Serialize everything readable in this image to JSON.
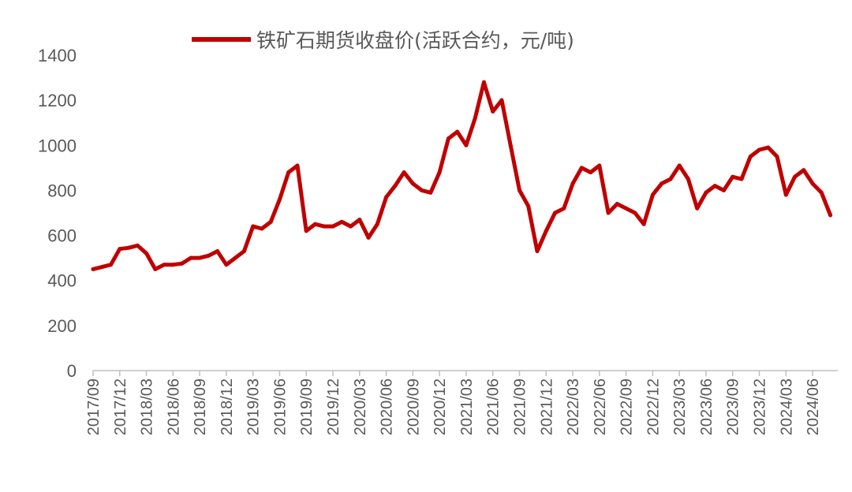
{
  "chart_data": {
    "type": "line",
    "title": "",
    "xlabel": "",
    "ylabel": "",
    "ylim": [
      0,
      1400
    ],
    "yticks": [
      0,
      200,
      400,
      600,
      800,
      1000,
      1200,
      1400
    ],
    "grid": false,
    "legend_position": "top",
    "line_color": "#C00000",
    "xtick_labels": [
      "2017/09",
      "2017/12",
      "2018/03",
      "2018/06",
      "2018/09",
      "2018/12",
      "2019/03",
      "2019/06",
      "2019/09",
      "2019/12",
      "2020/03",
      "2020/06",
      "2020/09",
      "2020/12",
      "2021/03",
      "2021/06",
      "2021/09",
      "2021/12",
      "2022/03",
      "2022/06",
      "2022/09",
      "2022/12",
      "2023/03",
      "2023/06",
      "2023/09",
      "2023/12",
      "2024/03",
      "2024/06"
    ],
    "series": [
      {
        "name": "铁矿石期货收盘价(活跃合约，元/吨)",
        "x": [
          "2017/09",
          "2017/10",
          "2017/11",
          "2017/12",
          "2018/01",
          "2018/02",
          "2018/03",
          "2018/04",
          "2018/05",
          "2018/06",
          "2018/07",
          "2018/08",
          "2018/09",
          "2018/10",
          "2018/11",
          "2018/12",
          "2019/01",
          "2019/02",
          "2019/03",
          "2019/04",
          "2019/05",
          "2019/06",
          "2019/07",
          "2019/08",
          "2019/09",
          "2019/10",
          "2019/11",
          "2019/12",
          "2020/01",
          "2020/02",
          "2020/03",
          "2020/04",
          "2020/05",
          "2020/06",
          "2020/07",
          "2020/08",
          "2020/09",
          "2020/10",
          "2020/11",
          "2020/12",
          "2021/01",
          "2021/02",
          "2021/03",
          "2021/04",
          "2021/05",
          "2021/06",
          "2021/07",
          "2021/08",
          "2021/09",
          "2021/10",
          "2021/11",
          "2021/12",
          "2022/01",
          "2022/02",
          "2022/03",
          "2022/04",
          "2022/05",
          "2022/06",
          "2022/07",
          "2022/08",
          "2022/09",
          "2022/10",
          "2022/11",
          "2022/12",
          "2023/01",
          "2023/02",
          "2023/03",
          "2023/04",
          "2023/05",
          "2023/06",
          "2023/07",
          "2023/08",
          "2023/09",
          "2023/10",
          "2023/11",
          "2023/12",
          "2024/01",
          "2024/02",
          "2024/03",
          "2024/04",
          "2024/05",
          "2024/06",
          "2024/07",
          "2024/08"
        ],
        "values": [
          450,
          460,
          470,
          540,
          545,
          555,
          520,
          450,
          470,
          470,
          475,
          500,
          500,
          510,
          530,
          470,
          500,
          530,
          640,
          630,
          660,
          760,
          880,
          910,
          620,
          650,
          640,
          640,
          660,
          640,
          670,
          590,
          650,
          770,
          820,
          880,
          830,
          800,
          790,
          880,
          1030,
          1060,
          1000,
          1120,
          1280,
          1150,
          1200,
          1000,
          800,
          730,
          530,
          620,
          700,
          720,
          830,
          900,
          880,
          910,
          700,
          740,
          720,
          700,
          650,
          780,
          830,
          850,
          910,
          850,
          720,
          790,
          820,
          800,
          860,
          850,
          950,
          980,
          990,
          950,
          780,
          860,
          890,
          830,
          790,
          690
        ]
      }
    ]
  }
}
